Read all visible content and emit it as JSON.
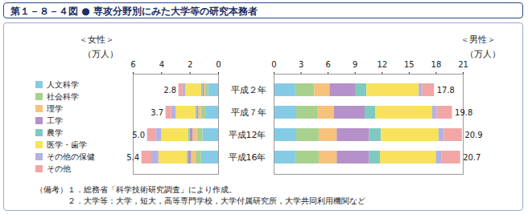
{
  "title": "第１－８－４図 ● 専攻分野別にみた大学等の研究本務者",
  "notes_label": "（備考）",
  "notes": [
    "１．総務省「科学技術研究調査」により作成。",
    "２．大学等：大学，短大，高等専門学校，大学付属研究所，大学共同利用機関など"
  ],
  "chart_data": [
    {
      "type": "bar",
      "title": "＜女性＞",
      "xlabel": "（万人）",
      "orientation": "horizontal",
      "stacked": true,
      "grid": false,
      "tick_labels": "x",
      "categories": [
        "平成２年",
        "平成７年",
        "平成12年",
        "平成16年"
      ],
      "xlim": [
        6,
        0
      ],
      "xticks": [
        6,
        4,
        2,
        0
      ],
      "totals": [
        2.8,
        3.7,
        5.0,
        5.4
      ],
      "total_labels": [
        "2.8",
        "3.7",
        "5.0",
        "5.4"
      ],
      "series": [
        {
          "name": "人文科学",
          "color": "#86cbe6",
          "values": [
            0.7,
            0.9,
            1.1,
            1.2
          ]
        },
        {
          "name": "社会科学",
          "color": "#a9d18e",
          "values": [
            0.2,
            0.3,
            0.4,
            0.4
          ]
        },
        {
          "name": "理学",
          "color": "#f6c27c",
          "values": [
            0.1,
            0.2,
            0.3,
            0.3
          ]
        },
        {
          "name": "工学",
          "color": "#b491c8",
          "values": [
            0.1,
            0.1,
            0.2,
            0.2
          ]
        },
        {
          "name": "農学",
          "color": "#7fcac0",
          "values": [
            0.1,
            0.1,
            0.1,
            0.1
          ]
        },
        {
          "name": "医学・歯学",
          "color": "#f8e25c",
          "values": [
            1.1,
            1.4,
            1.9,
            2.0
          ]
        },
        {
          "name": "その他の保健",
          "color": "#b3b3e3",
          "values": [
            0.2,
            0.3,
            0.4,
            0.5
          ]
        },
        {
          "name": "その他",
          "color": "#f2a6a6",
          "values": [
            0.3,
            0.4,
            0.6,
            0.7
          ]
        }
      ]
    },
    {
      "type": "bar",
      "title": "＜男性＞",
      "xlabel": "（万人）",
      "orientation": "horizontal",
      "stacked": true,
      "grid": false,
      "categories": [
        "平成２年",
        "平成７年",
        "平成12年",
        "平成16年"
      ],
      "xlim": [
        0,
        21
      ],
      "xticks": [
        0,
        3,
        6,
        9,
        12,
        15,
        18,
        21
      ],
      "totals": [
        17.8,
        19.8,
        20.9,
        20.7
      ],
      "total_labels": [
        "17.8",
        "19.8",
        "20.9",
        "20.7"
      ],
      "series": [
        {
          "name": "人文科学",
          "color": "#86cbe6",
          "values": [
            2.4,
            2.5,
            2.5,
            2.4
          ]
        },
        {
          "name": "社会科学",
          "color": "#a9d18e",
          "values": [
            2.1,
            2.4,
            2.5,
            2.6
          ]
        },
        {
          "name": "理学",
          "color": "#f6c27c",
          "values": [
            1.7,
            1.8,
            2.0,
            2.0
          ]
        },
        {
          "name": "工学",
          "color": "#b491c8",
          "values": [
            2.9,
            3.4,
            3.6,
            3.6
          ]
        },
        {
          "name": "農学",
          "color": "#7fcac0",
          "values": [
            1.2,
            1.2,
            1.3,
            1.2
          ]
        },
        {
          "name": "医学・歯学",
          "color": "#f8e25c",
          "values": [
            5.8,
            6.3,
            6.4,
            6.2
          ]
        },
        {
          "name": "その他の保健",
          "color": "#b3b3e3",
          "values": [
            0.4,
            0.5,
            0.6,
            0.6
          ]
        },
        {
          "name": "その他",
          "color": "#f2a6a6",
          "values": [
            1.3,
            1.7,
            2.0,
            2.1
          ]
        }
      ]
    }
  ]
}
